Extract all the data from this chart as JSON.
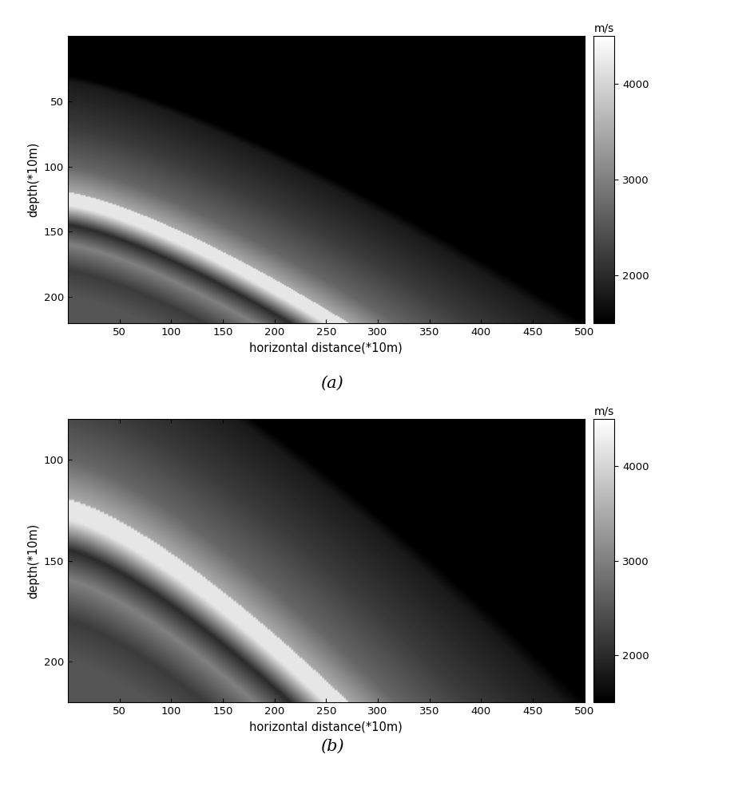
{
  "fig_width": 9.44,
  "fig_height": 10.0,
  "dpi": 100,
  "background_color": "#ffffff",
  "panel_a": {
    "xlim": [
      0,
      500
    ],
    "ylim": [
      220,
      0
    ],
    "xticks": [
      50,
      100,
      150,
      200,
      250,
      300,
      350,
      400,
      450,
      500
    ],
    "yticks": [
      50,
      100,
      150,
      200
    ],
    "xlabel": "horizontal distance(*10m)",
    "ylabel": "depth(*10m)",
    "vmin": 1500,
    "vmax": 4500,
    "cbar_ticks": [
      2000,
      3000,
      4000
    ],
    "cbar_label": "m/s",
    "label": "(a)"
  },
  "panel_b": {
    "xlim": [
      0,
      500
    ],
    "ylim": [
      220,
      80
    ],
    "xticks": [
      50,
      100,
      150,
      200,
      250,
      300,
      350,
      400,
      450,
      500
    ],
    "yticks": [
      100,
      150,
      200
    ],
    "xlabel": "horizontal distance(*10m)",
    "ylabel": "depth(*10m)",
    "vmin": 1500,
    "vmax": 4500,
    "cbar_ticks": [
      2000,
      3000,
      4000
    ],
    "cbar_label": "m/s",
    "label": "(b)"
  }
}
